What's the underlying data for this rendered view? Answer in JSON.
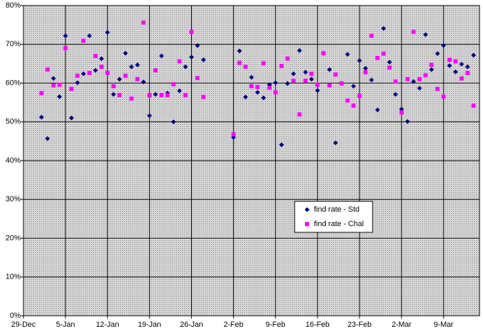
{
  "chart_data": {
    "type": "scatter",
    "x": [
      3,
      4,
      5,
      6,
      7,
      8,
      9,
      10,
      11,
      12,
      13,
      14,
      15,
      16,
      17,
      18,
      19,
      20,
      21,
      22,
      23,
      24,
      25,
      26,
      27,
      28,
      29,
      30,
      35,
      36,
      37,
      38,
      39,
      40,
      41,
      42,
      43,
      44,
      45,
      46,
      47,
      48,
      49,
      50,
      51,
      52,
      53,
      54,
      55,
      56,
      57,
      58,
      59,
      60,
      61,
      62,
      63,
      64,
      65,
      66,
      67,
      68,
      69,
      70,
      71,
      72,
      73,
      74,
      75
    ],
    "series": [
      {
        "name": "find rate - Std",
        "color": "#000080",
        "marker": "diamond",
        "values": [
          51.2,
          45.7,
          61.2,
          56.5,
          72.2,
          51.0,
          60.1,
          62.4,
          72.2,
          63.3,
          66.3,
          73.1,
          57.1,
          61.0,
          67.7,
          64.2,
          64.7,
          60.3,
          51.6,
          57.1,
          67.0,
          57.4,
          50.0,
          58.0,
          64.2,
          66.7,
          69.7,
          66.0,
          46.0,
          68.3,
          56.4,
          61.5,
          57.6,
          56.2,
          59.6,
          60.1,
          44.1,
          59.9,
          62.4,
          68.4,
          62.8,
          61.0,
          58.1,
          67.7,
          63.5,
          44.6,
          59.9,
          67.4,
          59.2,
          65.8,
          63.8,
          60.8,
          53.1,
          74.1,
          65.4,
          57.1,
          53.3,
          50.1,
          60.4,
          58.7,
          72.5,
          63.5,
          67.6,
          69.7,
          64.5,
          62.9,
          64.9,
          64.2,
          67.2
        ]
      },
      {
        "name": "find rate - Chal",
        "color": "#ff00ff",
        "marker": "square",
        "values": [
          57.4,
          63.5,
          59.4,
          59.6,
          69.0,
          58.5,
          61.9,
          70.9,
          62.6,
          67.0,
          64.2,
          62.6,
          59.2,
          56.9,
          61.9,
          56.0,
          61.0,
          75.6,
          56.9,
          63.3,
          56.9,
          56.9,
          59.7,
          65.6,
          56.9,
          73.2,
          61.3,
          56.4,
          46.8,
          65.2,
          64.2,
          59.2,
          59.0,
          65.1,
          58.8,
          57.6,
          64.4,
          66.3,
          60.6,
          51.9,
          60.6,
          62.4,
          59.6,
          67.7,
          59.4,
          62.2,
          59.9,
          55.5,
          54.2,
          56.7,
          62.8,
          72.2,
          66.5,
          67.6,
          64.0,
          60.4,
          52.4,
          61.0,
          73.2,
          61.0,
          62.0,
          64.7,
          58.5,
          56.5,
          66.0,
          65.6,
          61.2,
          62.6,
          54.2
        ]
      }
    ],
    "xlim": [
      0,
      76
    ],
    "xticks": [
      {
        "value": 0,
        "label": "29-Dec"
      },
      {
        "value": 7,
        "label": "5-Jan"
      },
      {
        "value": 14,
        "label": "12-Jan"
      },
      {
        "value": 21,
        "label": "19-Jan"
      },
      {
        "value": 28,
        "label": "26-Jan"
      },
      {
        "value": 35,
        "label": "2-Feb"
      },
      {
        "value": 42,
        "label": "9-Feb"
      },
      {
        "value": 49,
        "label": "16-Feb"
      },
      {
        "value": 56,
        "label": "23-Feb"
      },
      {
        "value": 63,
        "label": "2-Mar"
      },
      {
        "value": 70,
        "label": "9-Mar"
      }
    ],
    "ylim": [
      0,
      80
    ],
    "yticks": [
      {
        "value": 0,
        "label": "0%"
      },
      {
        "value": 10,
        "label": "10%"
      },
      {
        "value": 20,
        "label": "20%"
      },
      {
        "value": 30,
        "label": "30%"
      },
      {
        "value": 40,
        "label": "40%"
      },
      {
        "value": 50,
        "label": "50%"
      },
      {
        "value": 60,
        "label": "60%"
      },
      {
        "value": 70,
        "label": "70%"
      },
      {
        "value": 80,
        "label": "80%"
      }
    ],
    "grid": true
  }
}
